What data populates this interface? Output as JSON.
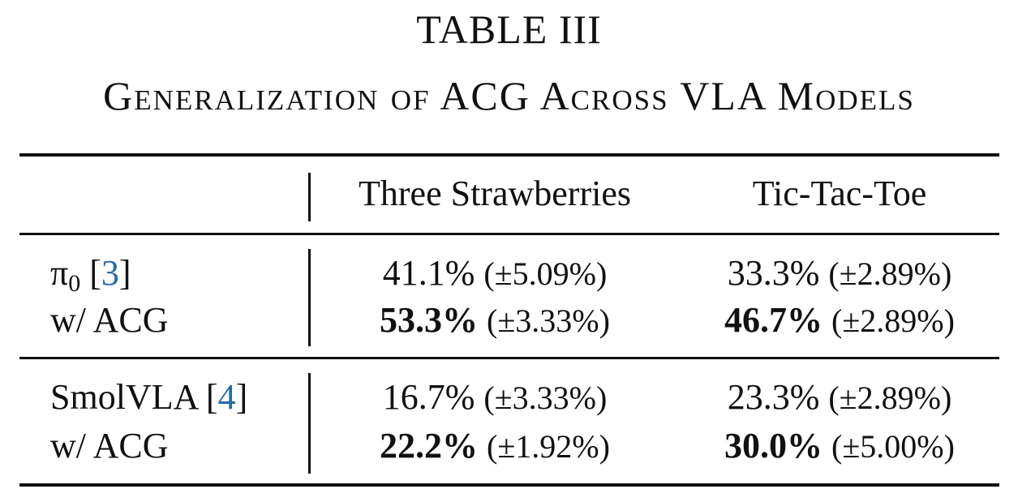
{
  "title": "TABLE III",
  "subtitle": "Generalization of ACG Across VLA Models",
  "header": {
    "col1": "Three Strawberries",
    "col2": "Tic-Tac-Toe"
  },
  "rows": [
    {
      "model": "π",
      "model_sub": "0",
      "cite_open": "[",
      "cite": "3",
      "cite_close": "]",
      "baseline": {
        "col1": {
          "value": "41.1%",
          "std": "(±5.09%)"
        },
        "col2": {
          "value": "33.3%",
          "std": "(±2.89%)"
        }
      },
      "acg_label": "w/ ACG",
      "acg": {
        "col1": {
          "value": "53.3%",
          "std": "(±3.33%)"
        },
        "col2": {
          "value": "46.7%",
          "std": "(±2.89%)"
        }
      }
    },
    {
      "model": "SmolVLA",
      "model_sub": "",
      "cite_open": "[",
      "cite": "4",
      "cite_close": "]",
      "baseline": {
        "col1": {
          "value": "16.7%",
          "std": "(±3.33%)"
        },
        "col2": {
          "value": "23.3%",
          "std": "(±2.89%)"
        }
      },
      "acg_label": "w/ ACG",
      "acg": {
        "col1": {
          "value": "22.2%",
          "std": "(±1.92%)"
        },
        "col2": {
          "value": "30.0%",
          "std": "(±5.00%)"
        }
      }
    }
  ]
}
